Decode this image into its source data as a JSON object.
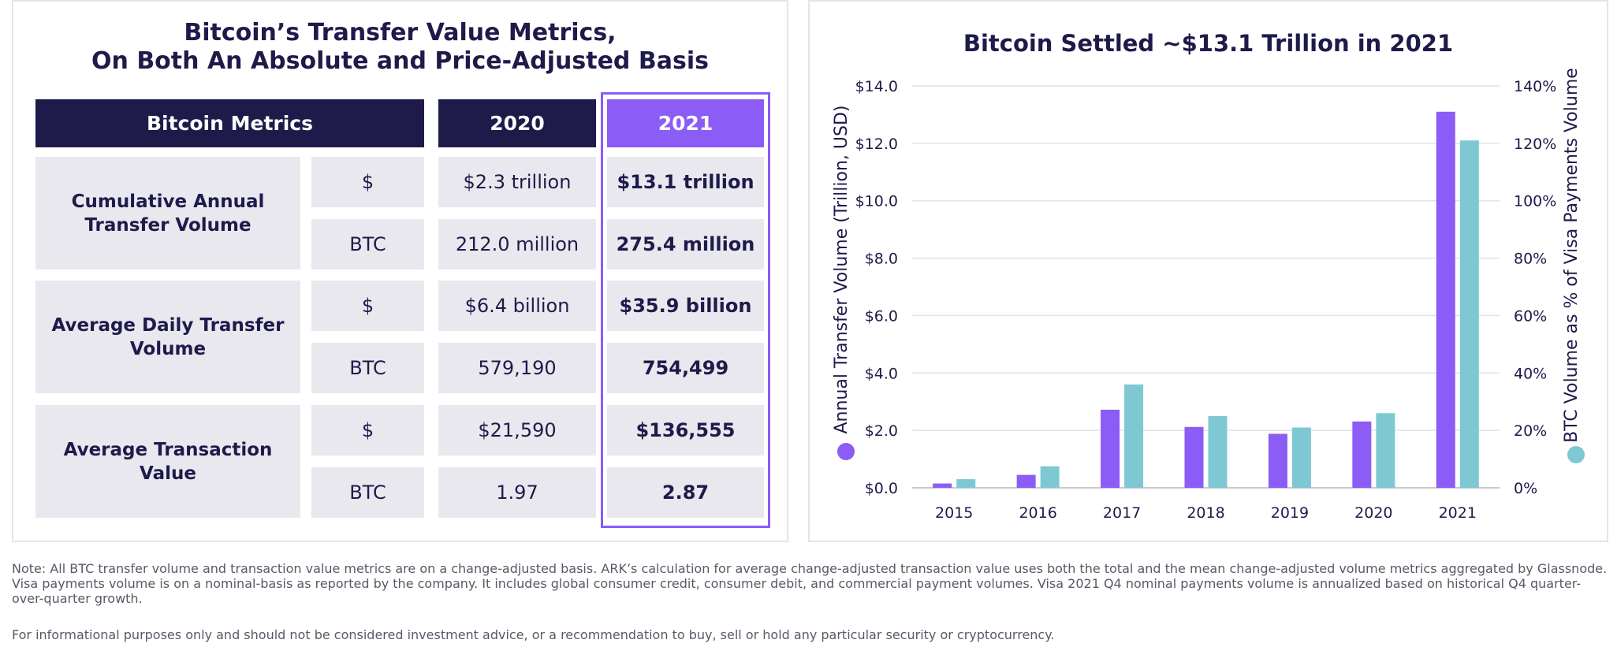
{
  "table_panel": {
    "title_line1": "Bitcoin’s Transfer Value Metrics,",
    "title_line2": "On Both An Absolute and Price-Adjusted Basis",
    "headers": {
      "metrics": "Bitcoin Metrics",
      "y2020": "2020",
      "y2021": "2021"
    },
    "groups": [
      {
        "label": "Cumulative Annual Transfer Volume",
        "rows": [
          {
            "unit": "$",
            "v2020": "$2.3 trillion",
            "v2021": "$13.1 trillion"
          },
          {
            "unit": "BTC",
            "v2020": "212.0 million",
            "v2021": "275.4 million"
          }
        ]
      },
      {
        "label": "Average Daily Transfer Volume",
        "rows": [
          {
            "unit": "$",
            "v2020": "$6.4 billion",
            "v2021": "$35.9 billion"
          },
          {
            "unit": "BTC",
            "v2020": "579,190",
            "v2021": "754,499"
          }
        ]
      },
      {
        "label": "Average Transaction Value",
        "rows": [
          {
            "unit": "$",
            "v2020": "$21,590",
            "v2021": "$136,555"
          },
          {
            "unit": "BTC",
            "v2020": "1.97",
            "v2021": "2.87"
          }
        ]
      }
    ],
    "colors": {
      "header": "#1e1b4b",
      "highlight": "#8b5cf6",
      "cell": "#e8e8ee"
    }
  },
  "chart_data": {
    "type": "bar",
    "title": "Bitcoin Settled ~$13.1 Trillion in 2021",
    "categories": [
      "2015",
      "2016",
      "2017",
      "2018",
      "2019",
      "2020",
      "2021"
    ],
    "series": [
      {
        "name": "Annual Transfer Volume (Trillion, USD)",
        "axis": "left",
        "color": "#8b5cf6",
        "values": [
          0.15,
          0.45,
          2.72,
          2.12,
          1.88,
          2.31,
          13.1
        ]
      },
      {
        "name": "BTC Volume as % of Visa Payments Volume",
        "axis": "right",
        "color": "#7ec8d3",
        "values": [
          3,
          7.5,
          36,
          25,
          21,
          26,
          121
        ]
      }
    ],
    "ylabel": "Annual Transfer Volume (Trillion, USD)",
    "y2label": "BTC Volume as % of Visa Payments Volume",
    "ylim": [
      0,
      14
    ],
    "y2lim": [
      0,
      140
    ],
    "yticks": [
      "$0.0",
      "$2.0",
      "$4.0",
      "$6.0",
      "$8.0",
      "$10.0",
      "$12.0",
      "$14.0"
    ],
    "y2ticks": [
      "0%",
      "20%",
      "40%",
      "60%",
      "80%",
      "100%",
      "120%",
      "140%"
    ],
    "grid": true
  },
  "footnotes": {
    "note": "Note: All BTC transfer volume and transaction value metrics are on a change-adjusted basis. ARK’s calculation for average change-adjusted transaction value uses both the total and the mean change-adjusted volume metrics aggregated by Glassnode. Visa payments volume is on a nominal-basis as reported by the company. It includes global consumer credit, consumer debit, and commercial payment volumes. Visa 2021 Q4 nominal payments volume is annualized based on historical Q4 quarter-over-quarter growth.",
    "disclaimer": "For informational purposes only and should not be considered investment advice, or a recommendation to buy, sell or hold any particular security or cryptocurrency."
  }
}
